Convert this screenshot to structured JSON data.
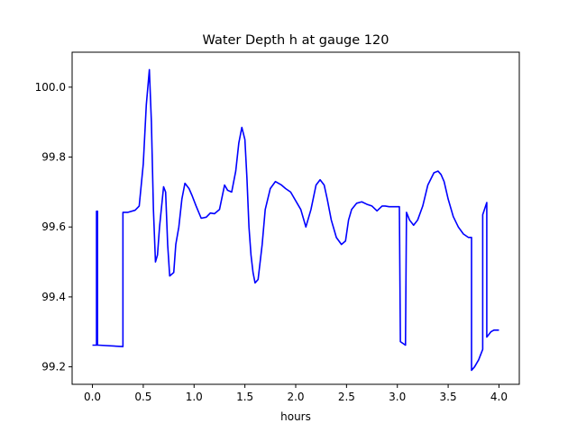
{
  "chart_data": {
    "type": "line",
    "title": "Water Depth h at gauge 120",
    "xlabel": "hours",
    "ylabel": "",
    "xlim": [
      -0.2,
      4.2
    ],
    "ylim": [
      99.15,
      100.1
    ],
    "xticks": [
      0.0,
      0.5,
      1.0,
      1.5,
      2.0,
      2.5,
      3.0,
      3.5,
      4.0
    ],
    "xtick_labels": [
      "0.0",
      "0.5",
      "1.0",
      "1.5",
      "2.0",
      "2.5",
      "3.0",
      "3.5",
      "4.0"
    ],
    "yticks": [
      99.2,
      99.4,
      99.6,
      99.8,
      100.0
    ],
    "ytick_labels": [
      "99.2",
      "99.4",
      "99.6",
      "99.8",
      "100.0"
    ],
    "grid": false,
    "legend": "none",
    "series": [
      {
        "color": "#0000ff",
        "x": [
          0.0,
          0.04,
          0.04,
          0.05,
          0.05,
          0.06,
          0.06,
          0.3,
          0.3,
          0.35,
          0.42,
          0.46,
          0.5,
          0.53,
          0.56,
          0.58,
          0.6,
          0.62,
          0.64,
          0.66,
          0.7,
          0.72,
          0.74,
          0.76,
          0.8,
          0.82,
          0.85,
          0.88,
          0.91,
          0.95,
          0.98,
          1.02,
          1.07,
          1.12,
          1.16,
          1.2,
          1.25,
          1.3,
          1.33,
          1.37,
          1.41,
          1.44,
          1.47,
          1.5,
          1.52,
          1.54,
          1.56,
          1.58,
          1.6,
          1.63,
          1.67,
          1.7,
          1.75,
          1.8,
          1.86,
          1.9,
          1.95,
          2.05,
          2.1,
          2.15,
          2.2,
          2.24,
          2.28,
          2.31,
          2.35,
          2.4,
          2.45,
          2.49,
          2.52,
          2.55,
          2.6,
          2.65,
          2.7,
          2.75,
          2.8,
          2.85,
          2.88,
          2.92,
          3.02,
          3.03,
          3.08,
          3.09,
          3.12,
          3.16,
          3.2,
          3.25,
          3.3,
          3.36,
          3.4,
          3.43,
          3.46,
          3.5,
          3.55,
          3.6,
          3.65,
          3.7,
          3.72,
          3.73,
          3.73,
          3.76,
          3.8,
          3.84,
          3.84,
          3.88,
          3.88,
          3.92,
          3.95,
          4.0
        ],
        "y": [
          99.262,
          99.262,
          99.645,
          99.645,
          99.262,
          99.262,
          99.262,
          99.258,
          99.642,
          99.642,
          99.648,
          99.66,
          99.78,
          99.95,
          100.05,
          99.9,
          99.65,
          99.5,
          99.52,
          99.6,
          99.715,
          99.7,
          99.55,
          99.46,
          99.47,
          99.55,
          99.6,
          99.68,
          99.725,
          99.71,
          99.69,
          99.66,
          99.625,
          99.628,
          99.64,
          99.638,
          99.65,
          99.72,
          99.705,
          99.7,
          99.76,
          99.84,
          99.885,
          99.85,
          99.74,
          99.6,
          99.52,
          99.47,
          99.44,
          99.45,
          99.55,
          99.65,
          99.71,
          99.73,
          99.72,
          99.71,
          99.7,
          99.65,
          99.6,
          99.65,
          99.72,
          99.735,
          99.72,
          99.68,
          99.62,
          99.57,
          99.55,
          99.56,
          99.62,
          99.65,
          99.668,
          99.672,
          99.665,
          99.66,
          99.646,
          99.66,
          99.66,
          99.658,
          99.658,
          99.272,
          99.262,
          99.642,
          99.62,
          99.605,
          99.62,
          99.66,
          99.72,
          99.755,
          99.76,
          99.75,
          99.73,
          99.68,
          99.63,
          99.6,
          99.58,
          99.57,
          99.57,
          99.57,
          99.19,
          99.2,
          99.22,
          99.25,
          99.635,
          99.67,
          99.285,
          99.3,
          99.305,
          99.305
        ]
      }
    ]
  }
}
